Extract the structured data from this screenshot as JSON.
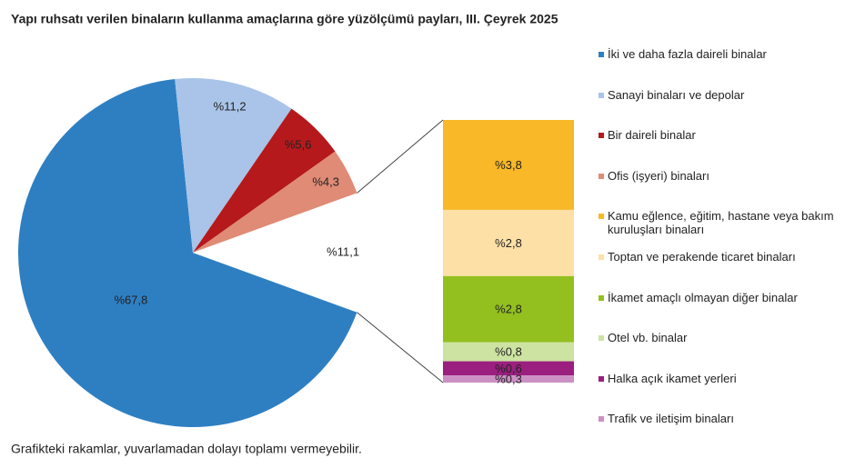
{
  "chart_data": {
    "type": "pie-of-bar",
    "title": "Yapı ruhsatı verilen binaların kullanma amaçlarına göre yüzölçümü payları, III. Çeyrek 2025",
    "footnote": "Grafikteki rakamlar, yuvarlamadan dolayı toplamı vermeyebilir.",
    "pie": {
      "categories": [
        "İki ve daha fazla daireli binalar",
        "Sanayi binaları ve depolar",
        "Bir daireli binalar",
        "Ofis (işyeri) binaları",
        null
      ],
      "values": [
        67.8,
        11.2,
        5.6,
        4.3,
        11.1
      ],
      "value_labels": [
        "%67,8",
        "%11,2",
        "%5,6",
        "%4,3",
        "%11,1"
      ],
      "colors": [
        "#2e7fc2",
        "#a9c4e8",
        "#b5191b",
        "#e08b76",
        "#ffffff"
      ]
    },
    "bar": {
      "categories": [
        "Kamu eğlence, eğitim, hastane veya bakım kuruluşları binaları",
        "Toptan ve perakende ticaret binaları",
        "İkamet amaçlı olmayan diğer binalar",
        "Otel vb. binalar",
        "Halka açık ikamet yerleri",
        "Trafik ve iletişim binaları"
      ],
      "values": [
        3.8,
        2.8,
        2.8,
        0.8,
        0.6,
        0.3
      ],
      "value_labels": [
        "%3,8",
        "%2,8",
        "%2,8",
        "%0,8",
        "%0,6",
        "%0,3"
      ],
      "colors": [
        "#f8b827",
        "#fde0a6",
        "#93c01f",
        "#cde3a2",
        "#9b1f7f",
        "#cc90c4"
      ]
    }
  }
}
